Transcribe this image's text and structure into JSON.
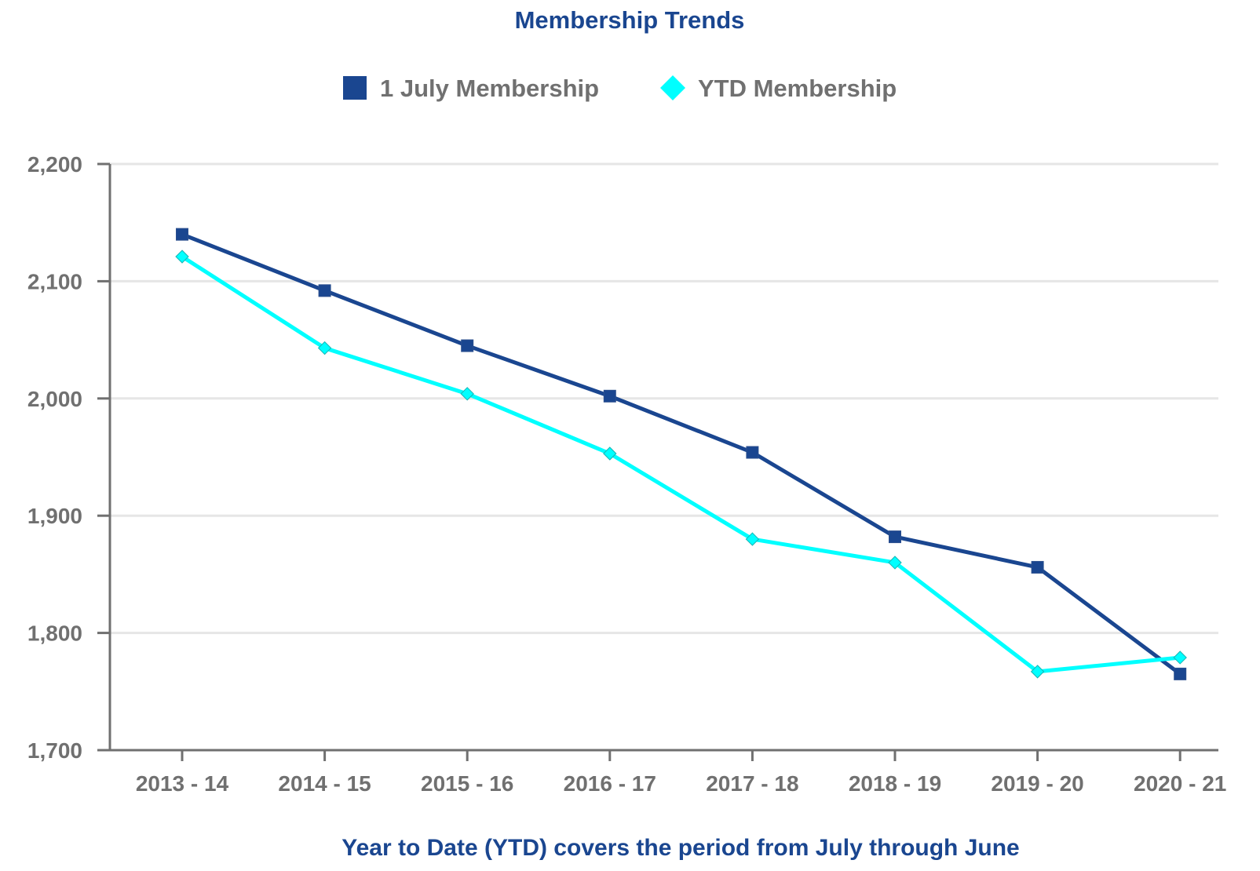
{
  "chart_data": {
    "type": "line",
    "title": "Membership Trends",
    "xlabel": "Year to Date (YTD) covers the period from July through June",
    "ylabel": "",
    "categories": [
      "2013 - 14",
      "2014 - 15",
      "2015 - 16",
      "2016 - 17",
      "2017 - 18",
      "2018 - 19",
      "2019 - 20",
      "2020 - 21"
    ],
    "ylim": [
      1700,
      2200
    ],
    "yticks": [
      1700,
      1800,
      1900,
      2000,
      2100,
      2200
    ],
    "ytick_labels": [
      "1,700",
      "1,800",
      "1,900",
      "2,000",
      "2,100",
      "2,200"
    ],
    "grid": "horizontal",
    "legend_position": "top-center",
    "series": [
      {
        "name": "1 July Membership",
        "color": "#1a4690",
        "marker": "square",
        "values": [
          2140,
          2092,
          2045,
          2002,
          1954,
          1882,
          1856,
          1765
        ]
      },
      {
        "name": "YTD Membership",
        "color": "#00ffff",
        "marker": "diamond",
        "values": [
          2121,
          2043,
          2004,
          1953,
          1880,
          1860,
          1767,
          1779
        ]
      }
    ]
  }
}
